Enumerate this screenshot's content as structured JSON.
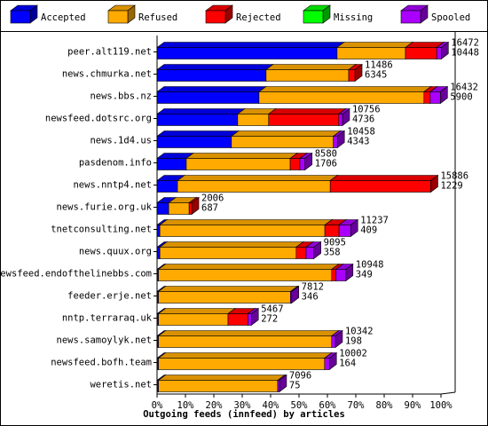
{
  "chart_data": {
    "type": "stacked-bar-3d-h",
    "title": "Outgoing feeds (innfeed) by articles",
    "categories": [
      "peer.alt119.net",
      "news.chmurka.net",
      "news.bbs.nz",
      "newsfeed.dotsrc.org",
      "news.1d4.us",
      "pasdenom.info",
      "news.nntp4.net",
      "news.furie.org.uk",
      "tnetconsulting.net",
      "news.quux.org",
      "newsfeed.endofthelinebbs.com",
      "feeder.erje.net",
      "nntp.terraraq.uk",
      "news.samoylyk.net",
      "newsfeed.bofh.team",
      "weretis.net"
    ],
    "series": [
      {
        "name": "Accepted",
        "color": "#0000ff",
        "values": [
          63.4,
          38.4,
          35.9,
          28.4,
          26.2,
          10.3,
          7.2,
          4.1,
          1,
          1,
          0.5,
          0.5,
          0.5,
          0.5,
          0.5,
          0.5
        ]
      },
      {
        "name": "Refused",
        "color": "#ffaa00",
        "values": [
          24.1,
          29.1,
          58.1,
          10.9,
          35.9,
          36.6,
          53.8,
          7.2,
          58.1,
          48,
          61,
          46.5,
          24.5,
          61,
          58.5,
          42
        ]
      },
      {
        "name": "Rejected",
        "color": "#ff0000",
        "values": [
          11,
          2.2,
          2.2,
          24.7,
          0,
          3.4,
          35.4,
          0.9,
          5,
          3.5,
          1.5,
          0,
          7,
          0,
          0,
          0
        ]
      },
      {
        "name": "Missing",
        "color": "#00ff00",
        "values": [
          0,
          0,
          0,
          0,
          0,
          0,
          0,
          0,
          0,
          0,
          0,
          0,
          0,
          0,
          0,
          0
        ]
      },
      {
        "name": "Spooled",
        "color": "#aa00ff",
        "values": [
          1.6,
          0,
          3.6,
          1.3,
          1.4,
          1.8,
          0,
          0,
          4.1,
          2.7,
          3.5,
          0.4,
          1.2,
          1.3,
          1.7,
          0.6
        ]
      }
    ],
    "offered": [
      16472,
      11486,
      16432,
      10756,
      10458,
      8580,
      15886,
      2006,
      11237,
      9095,
      10948,
      7812,
      5467,
      10342,
      10002,
      7096
    ],
    "second_counts": [
      10448,
      6345,
      5900,
      4736,
      4343,
      1706,
      1229,
      687,
      409,
      358,
      349,
      346,
      272,
      198,
      164,
      75
    ],
    "xlim": [
      0,
      100
    ],
    "xticks": [
      {
        "value": 0,
        "label": "0%"
      },
      {
        "value": 10,
        "label": "10%"
      },
      {
        "value": 20,
        "label": "20%"
      },
      {
        "value": 30,
        "label": "30%"
      },
      {
        "value": 40,
        "label": "40%"
      },
      {
        "value": 50,
        "label": "50%"
      },
      {
        "value": 60,
        "label": "60%"
      },
      {
        "value": 70,
        "label": "70%"
      },
      {
        "value": 80,
        "label": "80%"
      },
      {
        "value": 90,
        "label": "90%"
      },
      {
        "value": 100,
        "label": "100%"
      }
    ],
    "legend_position": "top"
  }
}
